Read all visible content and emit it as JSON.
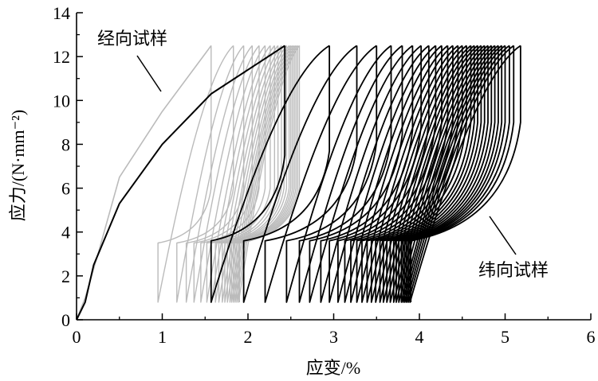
{
  "chart_data": {
    "type": "line",
    "xlabel": "应变/%",
    "ylabel": "应力/(N·mm⁻²)",
    "xlim": [
      0,
      6
    ],
    "ylim": [
      0,
      14
    ],
    "xticks": [
      "0",
      "1",
      "2",
      "3",
      "4",
      "5",
      "6"
    ],
    "yticks": [
      "0",
      "2",
      "4",
      "6",
      "8",
      "10",
      "12",
      "14"
    ],
    "grid": false,
    "stress_max": 12.5,
    "stress_min": 0.8,
    "annotations": [
      {
        "text": "经向试样",
        "series": "warp"
      },
      {
        "text": "纬向试样",
        "series": "weft"
      }
    ],
    "series": [
      {
        "key": "warp",
        "color": "#bbbbbb",
        "initial_loading": [
          [
            0,
            0
          ],
          [
            0.1,
            1.0
          ],
          [
            0.25,
            3.0
          ],
          [
            0.5,
            6.5
          ],
          [
            1.0,
            9.5
          ],
          [
            1.57,
            12.5
          ]
        ],
        "hold_stress": 6.0,
        "reload_stress": 3.5,
        "peak_strains": [
          1.57,
          1.83,
          1.95,
          2.05,
          2.13,
          2.2,
          2.26,
          2.31,
          2.35,
          2.39,
          2.42,
          2.45,
          2.48,
          2.5,
          2.52,
          2.54,
          2.56,
          2.58,
          2.6
        ],
        "min_strains": [
          0.95,
          1.17,
          1.28,
          1.37,
          1.45,
          1.52,
          1.57,
          1.62,
          1.66,
          1.7,
          1.73,
          1.76,
          1.79,
          1.81,
          1.83,
          1.85,
          1.87,
          1.89,
          1.9
        ]
      },
      {
        "key": "weft",
        "color": "#000000",
        "initial_loading": [
          [
            0,
            0
          ],
          [
            0.1,
            0.8
          ],
          [
            0.2,
            2.5
          ],
          [
            0.5,
            5.3
          ],
          [
            1.0,
            8.0
          ],
          [
            1.57,
            10.3
          ],
          [
            2.43,
            12.5
          ]
        ],
        "hold_stress": [
          7.5,
          9.0
        ],
        "reload_stress": 3.6,
        "peak_strains": [
          2.43,
          2.95,
          3.27,
          3.5,
          3.67,
          3.8,
          3.92,
          4.02,
          4.11,
          4.19,
          4.26,
          4.33,
          4.39,
          4.45,
          4.5,
          4.55,
          4.6,
          4.64,
          4.68,
          4.72,
          4.76,
          4.8,
          4.84,
          4.88,
          4.92,
          4.96,
          5.0,
          5.05,
          5.1,
          5.18
        ],
        "min_strains": [
          1.57,
          1.95,
          2.2,
          2.45,
          2.6,
          2.72,
          2.85,
          2.95,
          3.05,
          3.13,
          3.2,
          3.27,
          3.33,
          3.39,
          3.44,
          3.49,
          3.54,
          3.58,
          3.62,
          3.66,
          3.7,
          3.73,
          3.76,
          3.79,
          3.81,
          3.83,
          3.85,
          3.87,
          3.89,
          3.9
        ]
      }
    ]
  }
}
